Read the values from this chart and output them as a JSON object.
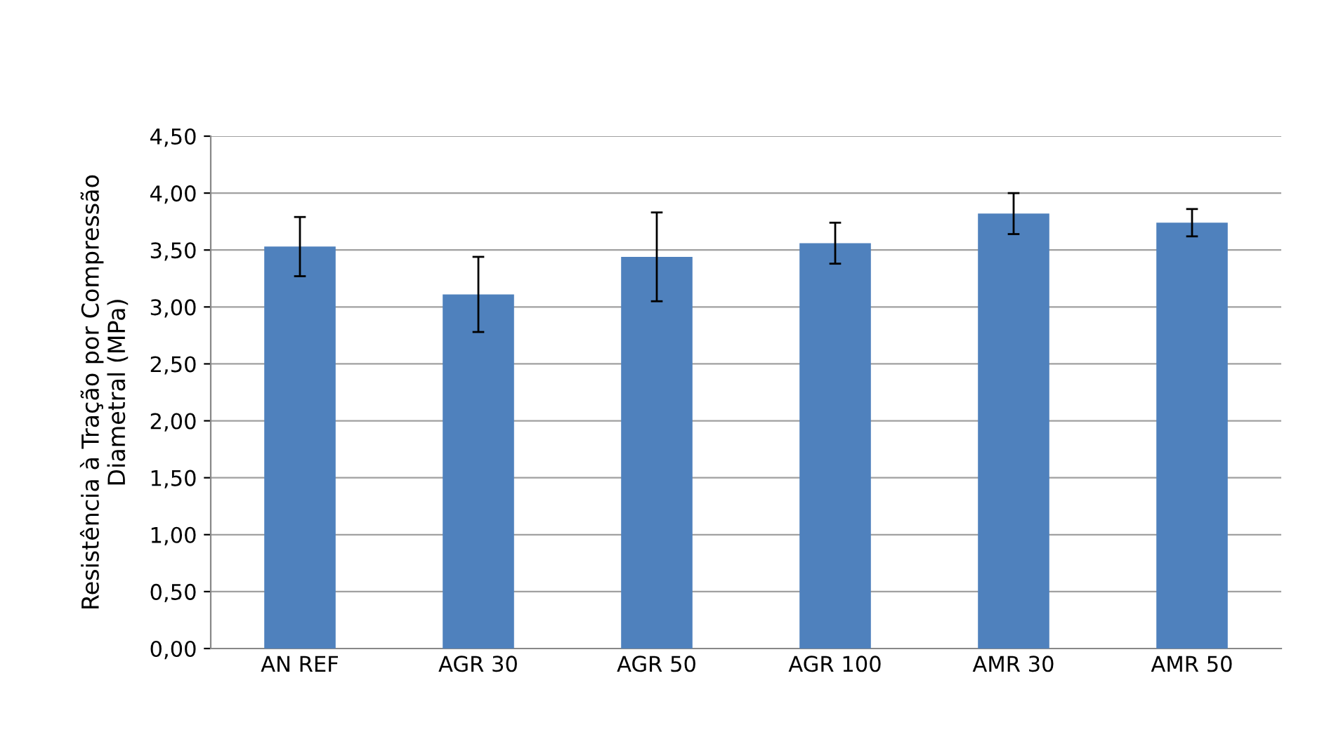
{
  "chart_data": {
    "type": "bar",
    "ylabel": "Resistência à Tração por Compressão\nDiametral (MPa)",
    "categories": [
      "AN REF",
      "AGR 30",
      "AGR 50",
      "AGR 100",
      "AMR 30",
      "AMR 50"
    ],
    "values": [
      3.53,
      3.11,
      3.44,
      3.56,
      3.82,
      3.74
    ],
    "errors": [
      0.26,
      0.33,
      0.39,
      0.18,
      0.18,
      0.12
    ],
    "color": "#4f81bd",
    "ylim": [
      0,
      4.5
    ],
    "yticks": [
      {
        "value": 0,
        "label": "0,00"
      },
      {
        "value": 0.5,
        "label": "0,50"
      },
      {
        "value": 1,
        "label": "1,00"
      },
      {
        "value": 1.5,
        "label": "1,50"
      },
      {
        "value": 2,
        "label": "2,00"
      },
      {
        "value": 2.5,
        "label": "2,50"
      },
      {
        "value": 3,
        "label": "3,00"
      },
      {
        "value": 3.5,
        "label": "3,50"
      },
      {
        "value": 4,
        "label": "4,00"
      },
      {
        "value": 4.5,
        "label": "4,50"
      }
    ],
    "grid": "y",
    "legend": false
  }
}
